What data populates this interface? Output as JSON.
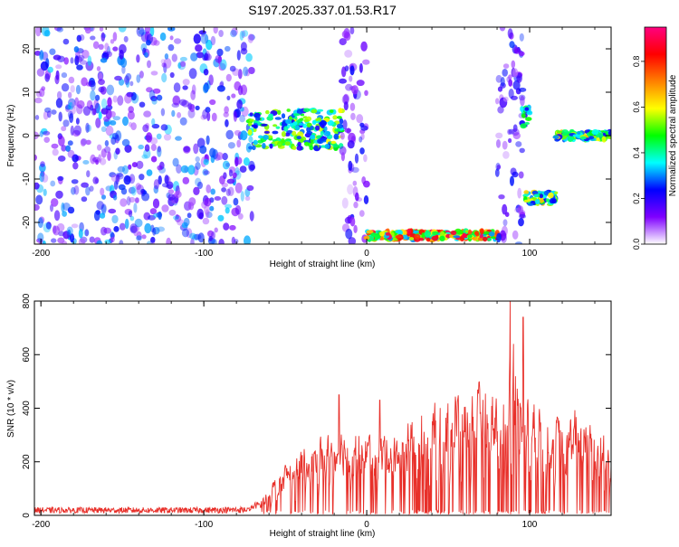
{
  "title": "S197.2025.337.01.53.R17",
  "chart_data": [
    {
      "type": "heatmap",
      "name": "spectrogram",
      "xlabel": "Height of straight line (km)",
      "ylabel": "Frequency (Hz)",
      "xlim": [
        -204,
        150
      ],
      "ylim": [
        -25,
        25
      ],
      "xticks": [
        -200,
        -100,
        0,
        100
      ],
      "yticks": [
        -20,
        -10,
        0,
        10,
        20
      ],
      "xtick_labels": [
        "-200",
        "-100",
        "0",
        "100"
      ],
      "ytick_labels": [
        "-20",
        "-10",
        "0",
        "10",
        "20"
      ],
      "colorbar": {
        "label": "Normalized spectral amplitude",
        "range": [
          0,
          0.95
        ],
        "ticks": [
          0.0,
          0.2,
          0.4,
          0.6,
          0.8
        ],
        "tick_labels": [
          "0.0",
          "0.2",
          "0.4",
          "0.6",
          "0.8"
        ],
        "colors": [
          "#ffffff",
          "#7f00ff",
          "#0000ff",
          "#00ffff",
          "#00ff00",
          "#ffff00",
          "#ff8000",
          "#ff0000",
          "#ff0080"
        ]
      },
      "regions": [
        {
          "desc": "broadband noise",
          "x": [
            -204,
            -70
          ],
          "f": [
            -25,
            25
          ],
          "amp": 0.25
        },
        {
          "desc": "line near 0 Hz",
          "x": [
            -72,
            -15
          ],
          "f": [
            -3,
            6
          ],
          "amp": 0.55
        },
        {
          "desc": "noise band",
          "x": [
            -15,
            0
          ],
          "f": [
            -25,
            25
          ],
          "amp": 0.18
        },
        {
          "desc": "line near -23 Hz",
          "x": [
            0,
            82
          ],
          "f": [
            -24,
            -22
          ],
          "amp": 0.85
        },
        {
          "desc": "noise band",
          "x": [
            80,
            96
          ],
          "f": [
            -25,
            25
          ],
          "amp": 0.2
        },
        {
          "desc": "line near 5 Hz",
          "x": [
            95,
            100
          ],
          "f": [
            2,
            7
          ],
          "amp": 0.5
        },
        {
          "desc": "line near -15 Hz",
          "x": [
            97,
            117
          ],
          "f": [
            -16,
            -13
          ],
          "amp": 0.6
        },
        {
          "desc": "line near 0 Hz",
          "x": [
            116,
            150
          ],
          "f": [
            -1,
            1
          ],
          "amp": 0.6
        }
      ]
    },
    {
      "type": "line",
      "name": "snr",
      "xlabel": "Height of straight line (km)",
      "ylabel": "SNR (10 * v/v)",
      "xlim": [
        -204,
        150
      ],
      "ylim": [
        0,
        800
      ],
      "xticks": [
        -200,
        -100,
        0,
        100
      ],
      "yticks": [
        0,
        200,
        400,
        600,
        800
      ],
      "xtick_labels": [
        "-200",
        "-100",
        "0",
        "100"
      ],
      "ytick_labels": [
        "0",
        "200",
        "400",
        "600",
        "800"
      ],
      "series": [
        {
          "name": "SNR",
          "color": "#e8302a",
          "envelope_x": [
            -204,
            -150,
            -100,
            -75,
            -65,
            -55,
            -45,
            -35,
            -25,
            -15,
            -5,
            5,
            15,
            25,
            30,
            40,
            50,
            60,
            70,
            80,
            85,
            90,
            95,
            100,
            110,
            120,
            125,
            130,
            140,
            150
          ],
          "envelope_y": [
            22,
            22,
            22,
            25,
            60,
            160,
            230,
            280,
            320,
            340,
            330,
            300,
            320,
            360,
            460,
            470,
            480,
            470,
            490,
            500,
            540,
            760,
            530,
            460,
            420,
            360,
            400,
            430,
            390,
            300
          ],
          "features": [
            {
              "x": -17,
              "y": 450
            },
            {
              "x": 8,
              "y": 430
            },
            {
              "x": 88,
              "y": 800
            },
            {
              "x": 90,
              "y": 640
            },
            {
              "x": 96,
              "y": 740
            }
          ]
        }
      ]
    }
  ]
}
